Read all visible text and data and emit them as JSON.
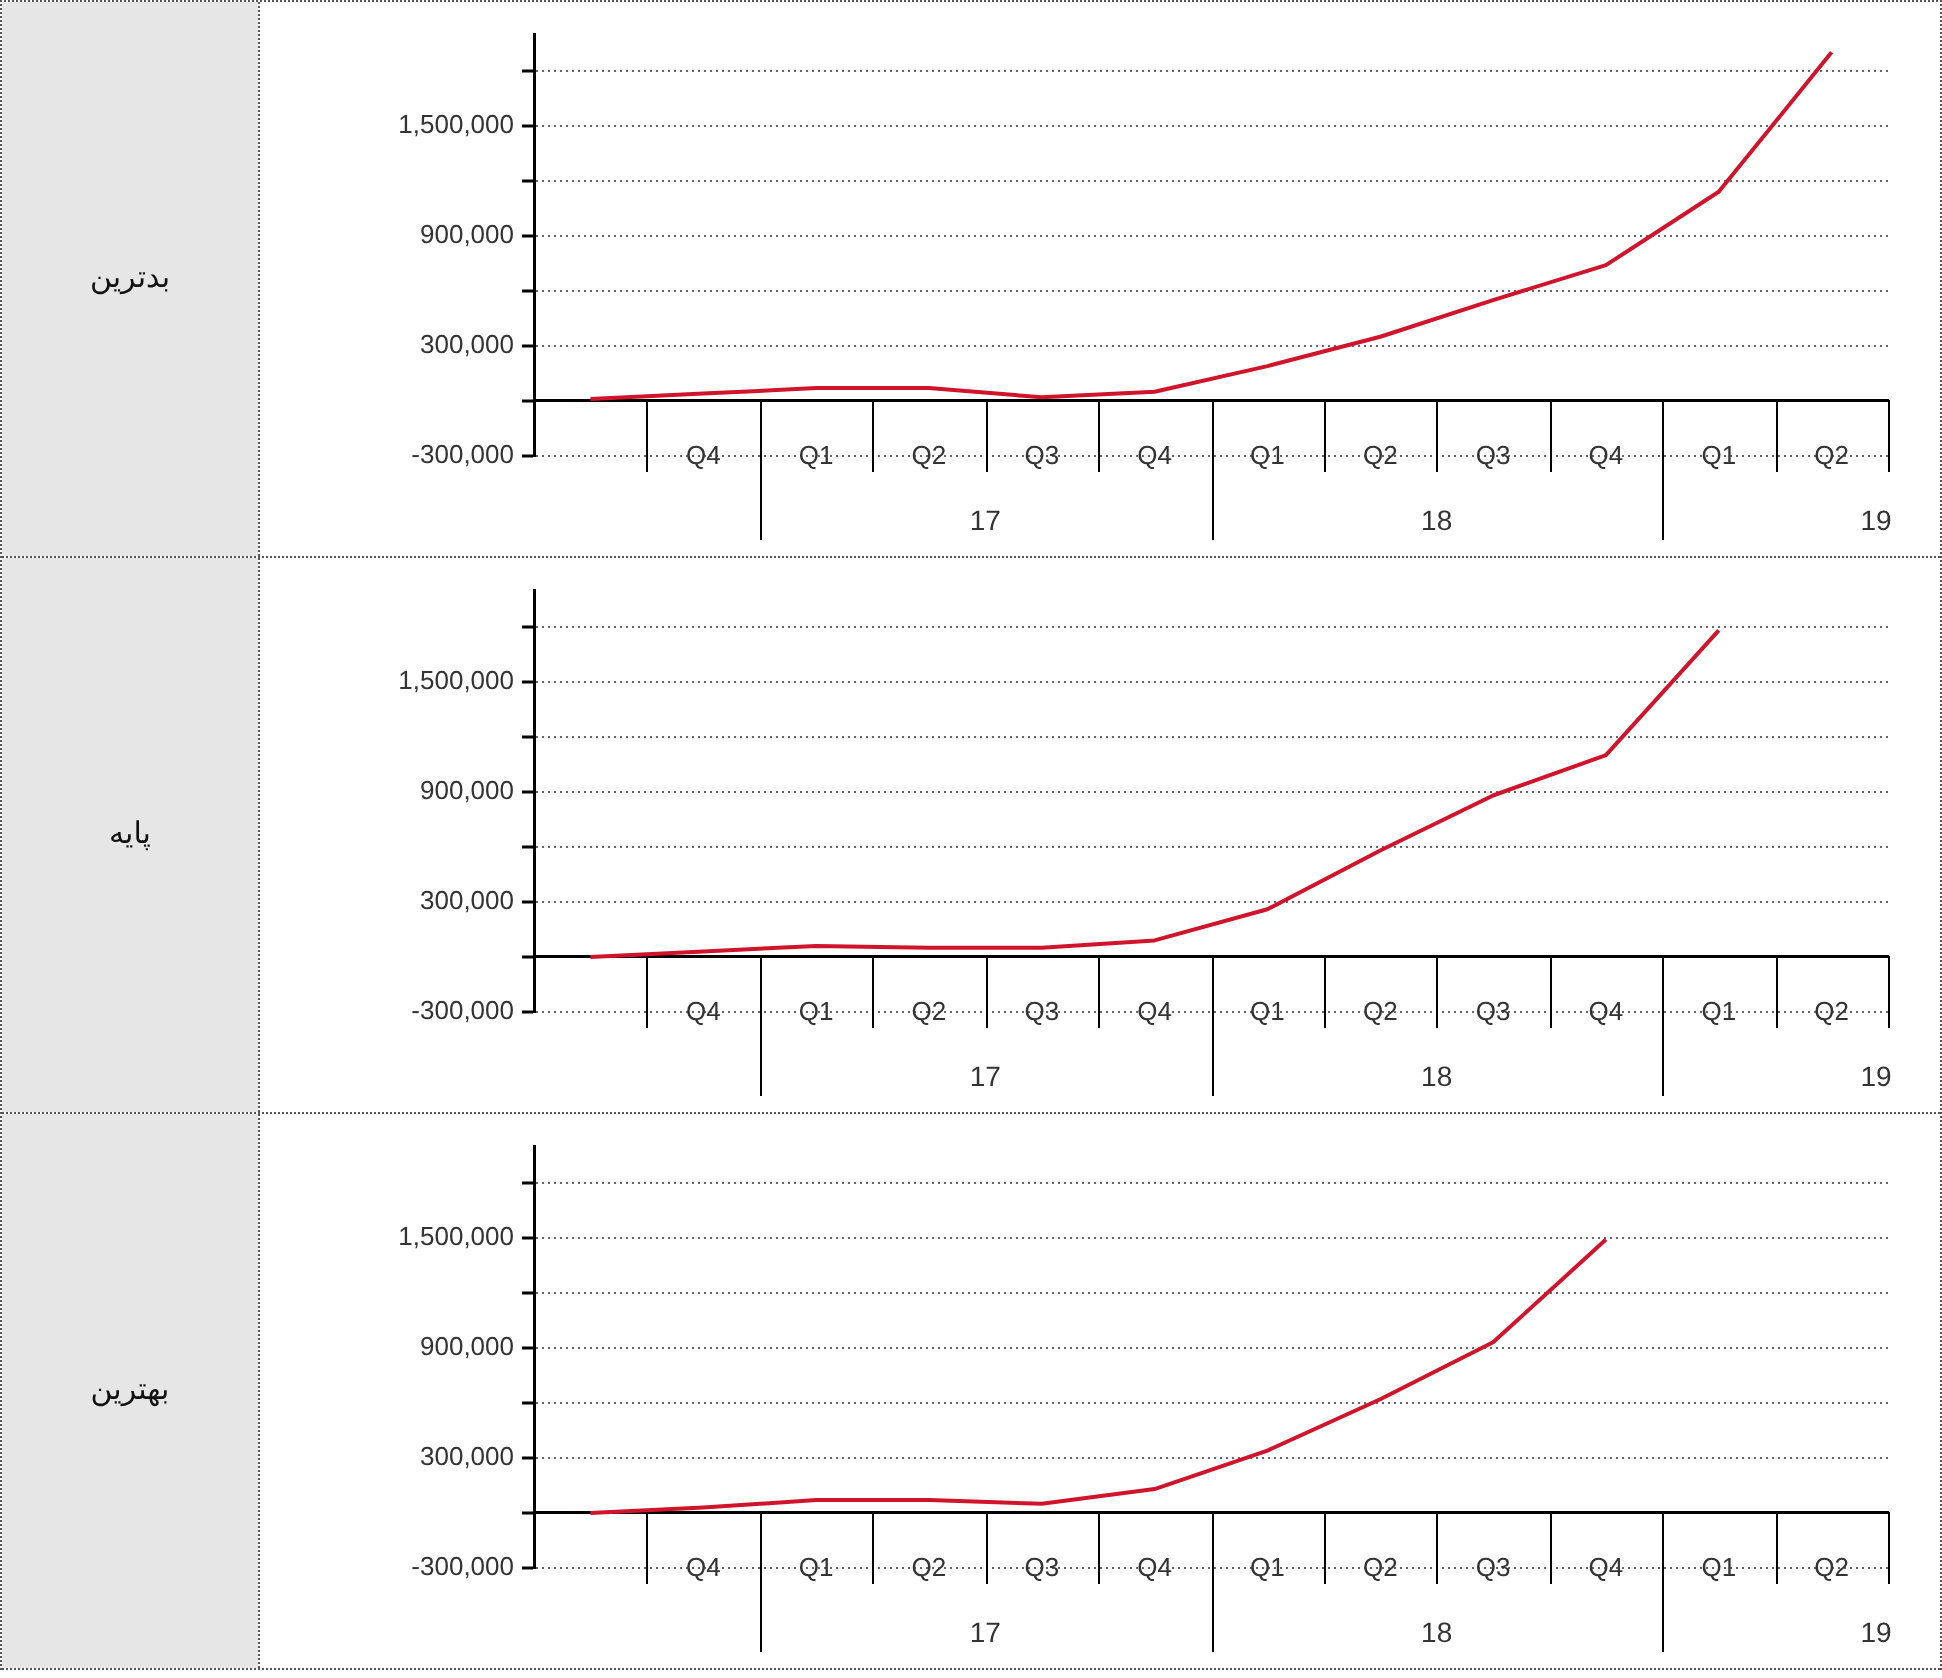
{
  "chart_data": [
    {
      "type": "line",
      "ylabel": "بدترین",
      "color": "#d0142c",
      "marker": "none",
      "line_style": "solid",
      "grid": "y",
      "legend": false,
      "categories": [
        null,
        "Q4",
        "Q1",
        "Q2",
        "Q3",
        "Q4",
        "Q1",
        "Q2",
        "Q3",
        "Q4",
        "Q1",
        "Q2"
      ],
      "values": [
        10000,
        40000,
        70000,
        70000,
        20000,
        50000,
        190000,
        350000,
        550000,
        740000,
        1140000,
        1900000
      ],
      "ylim": [
        -300000,
        2000000
      ],
      "yticks": [
        {
          "value": -300000,
          "label": "-300,000"
        },
        {
          "value": 0,
          "label": null
        },
        {
          "value": 300000,
          "label": "300,000"
        },
        {
          "value": 600000,
          "label": null
        },
        {
          "value": 900000,
          "label": "900,000"
        },
        {
          "value": 1200000,
          "label": null
        },
        {
          "value": 1500000,
          "label": "1,500,000"
        },
        {
          "value": 1800000,
          "label": null
        }
      ],
      "annotations": [
        {
          "text": "17"
        },
        {
          "text": "18"
        },
        {
          "text": "19"
        }
      ]
    },
    {
      "type": "line",
      "ylabel": "پایه",
      "color": "#d0142c",
      "marker": "none",
      "line_style": "solid",
      "grid": "y",
      "legend": false,
      "categories": [
        null,
        "Q4",
        "Q1",
        "Q2",
        "Q3",
        "Q4",
        "Q1",
        "Q2",
        "Q3",
        "Q4",
        "Q1",
        "Q2"
      ],
      "values": [
        0,
        30000,
        60000,
        50000,
        50000,
        90000,
        260000,
        580000,
        880000,
        1100000,
        1780000,
        null
      ],
      "ylim": [
        -300000,
        2000000
      ],
      "yticks": [
        {
          "value": -300000,
          "label": "-300,000"
        },
        {
          "value": 0,
          "label": null
        },
        {
          "value": 300000,
          "label": "300,000"
        },
        {
          "value": 600000,
          "label": null
        },
        {
          "value": 900000,
          "label": "900,000"
        },
        {
          "value": 1200000,
          "label": null
        },
        {
          "value": 1500000,
          "label": "1,500,000"
        },
        {
          "value": 1800000,
          "label": null
        }
      ],
      "annotations": [
        {
          "text": "17"
        },
        {
          "text": "18"
        },
        {
          "text": "19"
        }
      ]
    },
    {
      "type": "line",
      "ylabel": "بهترین",
      "color": "#d0142c",
      "marker": "none",
      "line_style": "solid",
      "grid": "y",
      "legend": false,
      "categories": [
        null,
        "Q4",
        "Q1",
        "Q2",
        "Q3",
        "Q4",
        "Q1",
        "Q2",
        "Q3",
        "Q4",
        "Q1",
        "Q2"
      ],
      "values": [
        0,
        30000,
        70000,
        70000,
        50000,
        130000,
        340000,
        620000,
        930000,
        1490000,
        null,
        null
      ],
      "ylim": [
        -300000,
        2000000
      ],
      "yticks": [
        {
          "value": -300000,
          "label": "-300,000"
        },
        {
          "value": 0,
          "label": null
        },
        {
          "value": 300000,
          "label": "300,000"
        },
        {
          "value": 600000,
          "label": null
        },
        {
          "value": 900000,
          "label": "900,000"
        },
        {
          "value": 1200000,
          "label": null
        },
        {
          "value": 1500000,
          "label": "1,500,000"
        },
        {
          "value": 1800000,
          "label": null
        }
      ],
      "annotations": [
        {
          "text": "17"
        },
        {
          "text": "18"
        },
        {
          "text": "19"
        }
      ]
    }
  ]
}
